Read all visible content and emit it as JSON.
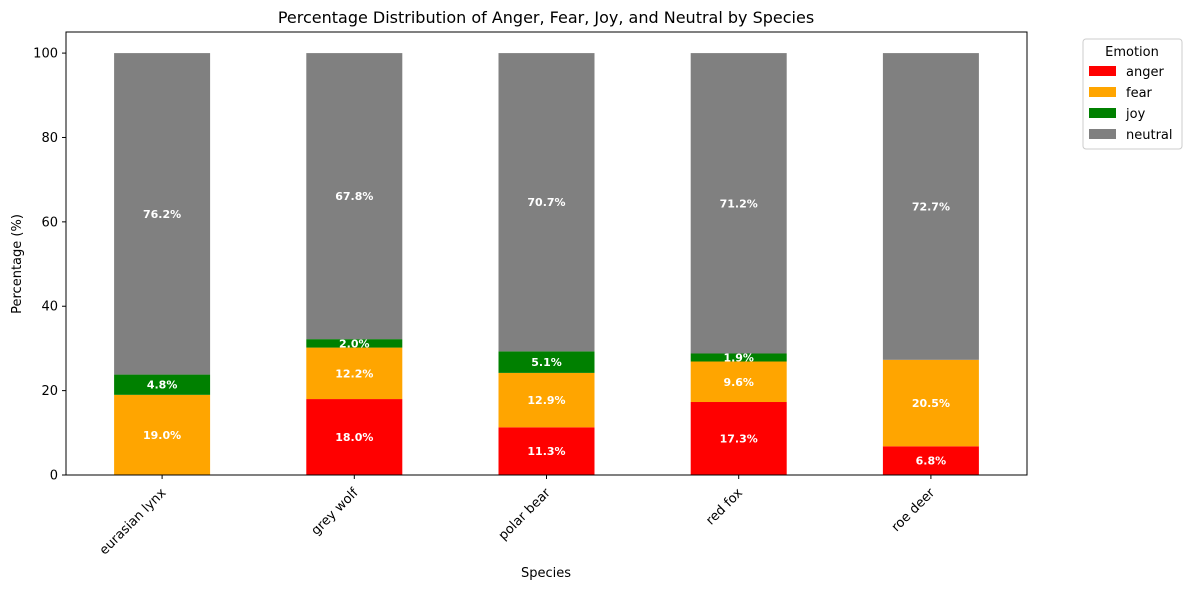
{
  "chart_data": {
    "type": "bar",
    "stacked": true,
    "title": "Percentage Distribution of Anger, Fear, Joy, and Neutral by Species",
    "xlabel": "Species",
    "ylabel": "Percentage (%)",
    "ylim": [
      0,
      105
    ],
    "yticks": [
      0,
      20,
      40,
      60,
      80,
      100
    ],
    "categories": [
      "eurasian lynx",
      "grey wolf",
      "polar bear",
      "red fox",
      "roe deer"
    ],
    "series": [
      {
        "name": "anger",
        "color": "#ff0000",
        "values": [
          0,
          18.0,
          11.3,
          17.3,
          6.8
        ]
      },
      {
        "name": "fear",
        "color": "#ffa500",
        "values": [
          19.0,
          12.2,
          12.9,
          9.6,
          20.5
        ]
      },
      {
        "name": "joy",
        "color": "#008000",
        "values": [
          4.8,
          2.0,
          5.1,
          1.9,
          0
        ]
      },
      {
        "name": "neutral",
        "color": "#808080",
        "values": [
          76.2,
          67.8,
          70.7,
          71.2,
          72.7
        ]
      }
    ],
    "legend": {
      "title": "Emotion",
      "position": "outside-top-right"
    },
    "grid": false,
    "data_labels": true
  }
}
